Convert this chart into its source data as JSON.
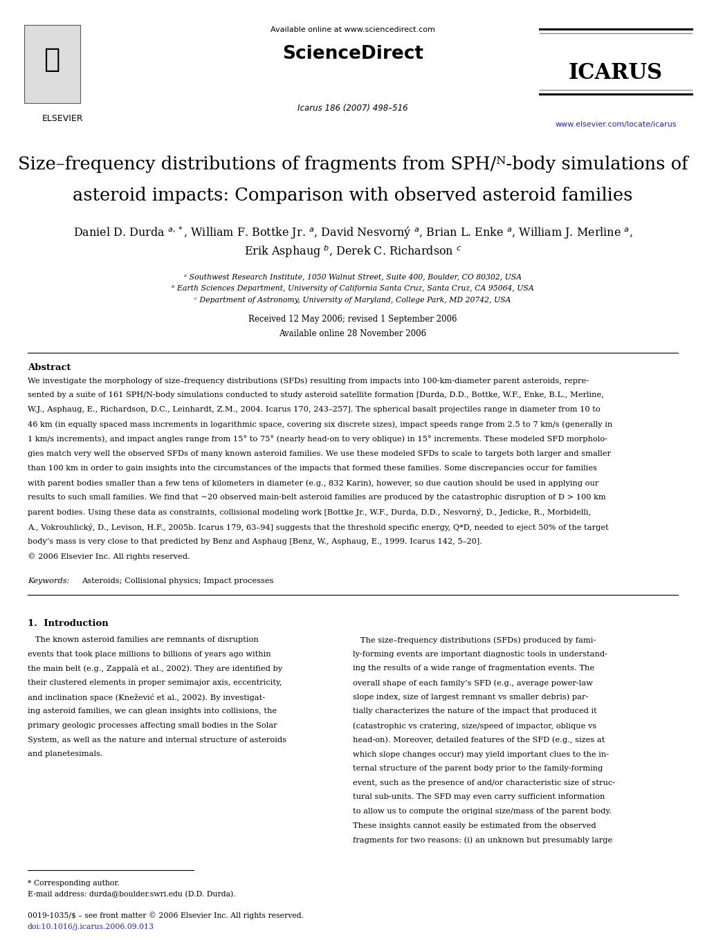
{
  "sciencedirect_text": "Available online at www.sciencedirect.com",
  "sciencedirect_logo": "ScienceDirect",
  "icarus_logo": "ICARUS",
  "elsevier_logo": "ELSEVIER",
  "journal": "Icarus 186 (2007) 498–516",
  "url": "www.elsevier.com/locate/icarus",
  "title_line1": "Size–frequency distributions of fragments from SPH/ᴺ-body simulations of",
  "title_line2": "asteroid impacts: Comparison with observed asteroid families",
  "authors_line1": "Daniel D. Durda ᵃ,*, William F. Bottke Jr. ᵃ, David Nesvorný ᵃ, Brian L. Enke ᵃ, William J. Merline ᵃ,",
  "authors_line2": "Erik Asphaug ᵇ, Derek C. Richardson ᶜ",
  "affil_a": "ᵃ Southwest Research Institute, 1050 Walnut Street, Suite 400, Boulder, CO 80302, USA",
  "affil_b": "ᵇ Earth Sciences Department, University of California Santa Cruz, Santa Cruz, CA 95064, USA",
  "affil_c": "ᶜ Department of Astronomy, University of Maryland, College Park, MD 20742, USA",
  "received": "Received 12 May 2006; revised 1 September 2006",
  "available": "Available online 28 November 2006",
  "abstract_title": "Abstract",
  "abstract_text": "We investigate the morphology of size–frequency distributions (SFDs) resulting from impacts into 100-km-diameter parent asteroids, repre-sented by a suite of 161 SPH/N-body simulations conducted to study asteroid satellite formation [Durda, D.D., Bottke, W.F., Enke, B.L., Merline, W.J., Asphaug, E., Richardson, D.C., Leinhardt, Z.M., 2004. Icarus 170, 243–257]. The spherical basalt projectiles range in diameter from 10 to 46 km (in equally spaced mass increments in logarithmic space, covering six discrete sizes), impact speeds range from 2.5 to 7 km/s (generally in 1 km/s increments), and impact angles range from 15° to 75° (nearly head-on to very oblique) in 15° increments. These modeled SFD morpholo-gies match very well the observed SFDs of many known asteroid families. We use these modeled SFDs to scale to targets both larger and smaller than 100 km in order to gain insights into the circumstances of the impacts that formed these families. Some discrepancies occur for families with parent bodies smaller than a few tens of kilometers in diameter (e.g., 832 Karin), however, so due caution should be used in applying our results to such small families. We find that ∼20 observed main-belt asteroid families are produced by the catastrophic disruption of D > 100 km parent bodies. Using these data as constraints, collisional modeling work [Bottke Jr., W.F., Durda, D.D., Nesvorný, D., Jedicke, R., Morbidelli, A., Vokrouhlický, D., Levison, H.F., 2005b. Icarus 179, 63–94] suggests that the threshold specific energy, Q*D, needed to eject 50% of the target body’s mass is very close to that predicted by Benz and Asphaug [Benz, W., Asphaug, E., 1999. Icarus 142, 5–20].\n© 2006 Elsevier Inc. All rights reserved.",
  "keywords_label": "Keywords:",
  "keywords_text": "Asteroids; Collisional physics; Impact processes",
  "section1_title": "1.  Introduction",
  "section1_left": "The known asteroid families are remnants of disruption events that took place millions to billions of years ago within the main belt (e.g., Zappalà et al., 2002). They are identified by their clustered elements in proper semimajor axis, eccentricity, and inclination space (Knežević et al., 2002). By investigat-ing asteroid families, we can glean insights into collisions, the primary geologic processes affecting small bodies in the Solar System, as well as the nature and internal structure of asteroids and planetesimals.",
  "section1_right": "The size–frequency distributions (SFDs) produced by fami-ly-forming events are important diagnostic tools in understand-ing the results of a wide range of fragmentation events. The overall shape of each family’s SFD (e.g., average power-law slope index, size of largest remnant vs smaller debris) par-tially characterizes the nature of the impact that produced it (catastrophic vs cratering, size/speed of impactor, oblique vs head-on). Moreover, detailed features of the SFD (e.g., sizes at which slope changes occur) may yield important clues to the in-ternal structure of the parent body prior to the family-forming event, such as the presence of and/or characteristic size of struc-tural sub-units. The SFD may even carry sufficient information to allow us to compute the original size/mass of the parent body. These insights cannot easily be estimated from the observed fragments for two reasons: (i) an unknown but presumably large",
  "footnote_line": "* Corresponding author.",
  "footnote_email": "E-mail address: durda@boulder.swri.edu (D.D. Durda).",
  "footer_issn": "0019-1035/$ – see front matter © 2006 Elsevier Inc. All rights reserved.",
  "footer_doi": "doi:10.1016/j.icarus.2006.09.013",
  "bg_color": "#ffffff",
  "text_color": "#000000",
  "link_color": "#2222bb"
}
